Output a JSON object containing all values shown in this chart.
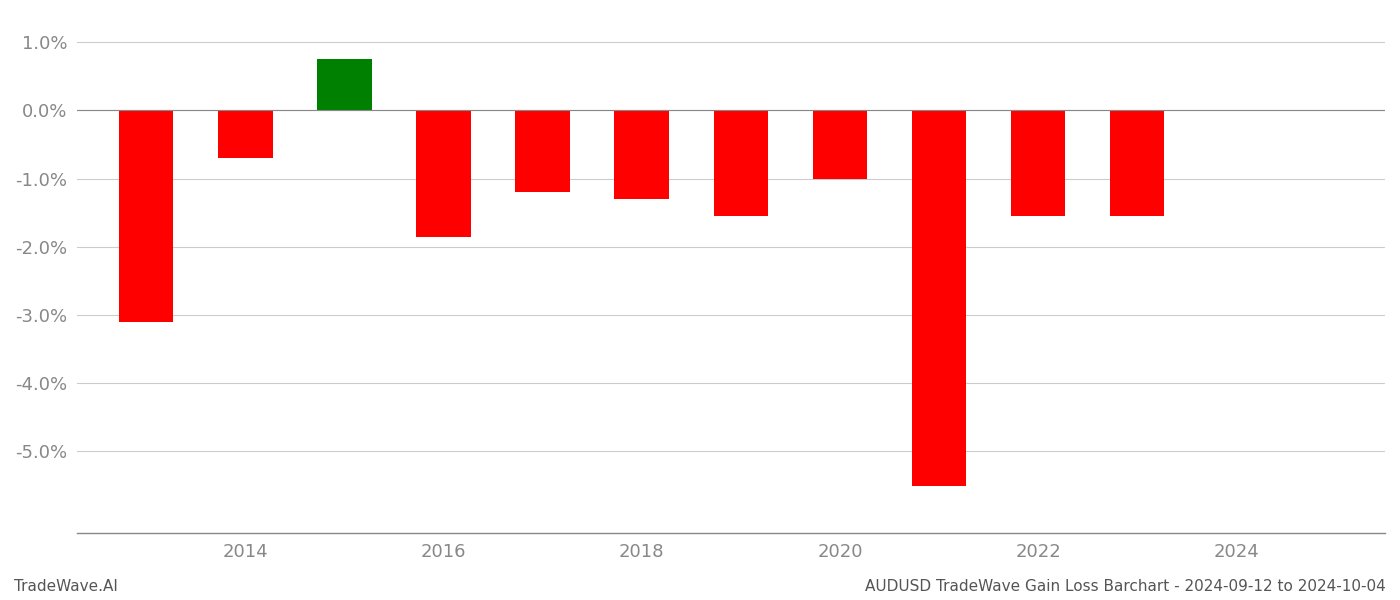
{
  "years": [
    2013,
    2014,
    2015,
    2016,
    2017,
    2018,
    2019,
    2020,
    2021,
    2022,
    2023
  ],
  "values": [
    -0.031,
    -0.007,
    0.0075,
    -0.0185,
    -0.012,
    -0.013,
    -0.0155,
    -0.01,
    -0.055,
    -0.0155,
    -0.0155
  ],
  "colors": [
    "#ff0000",
    "#ff0000",
    "#008000",
    "#ff0000",
    "#ff0000",
    "#ff0000",
    "#ff0000",
    "#ff0000",
    "#ff0000",
    "#ff0000",
    "#ff0000"
  ],
  "bar_width": 0.55,
  "ylim": [
    -0.062,
    0.014
  ],
  "yticks": [
    0.01,
    0.0,
    -0.01,
    -0.02,
    -0.03,
    -0.04,
    -0.05
  ],
  "xlabel_years": [
    2014,
    2016,
    2018,
    2020,
    2022,
    2024
  ],
  "xlim": [
    2012.3,
    2025.5
  ],
  "footer_left": "TradeWave.AI",
  "footer_right": "AUDUSD TradeWave Gain Loss Barchart - 2024-09-12 to 2024-10-04",
  "grid_color": "#cccccc",
  "background_color": "#ffffff",
  "axis_color": "#888888",
  "tick_color": "#888888",
  "label_fontsize": 13,
  "footer_fontsize": 11
}
